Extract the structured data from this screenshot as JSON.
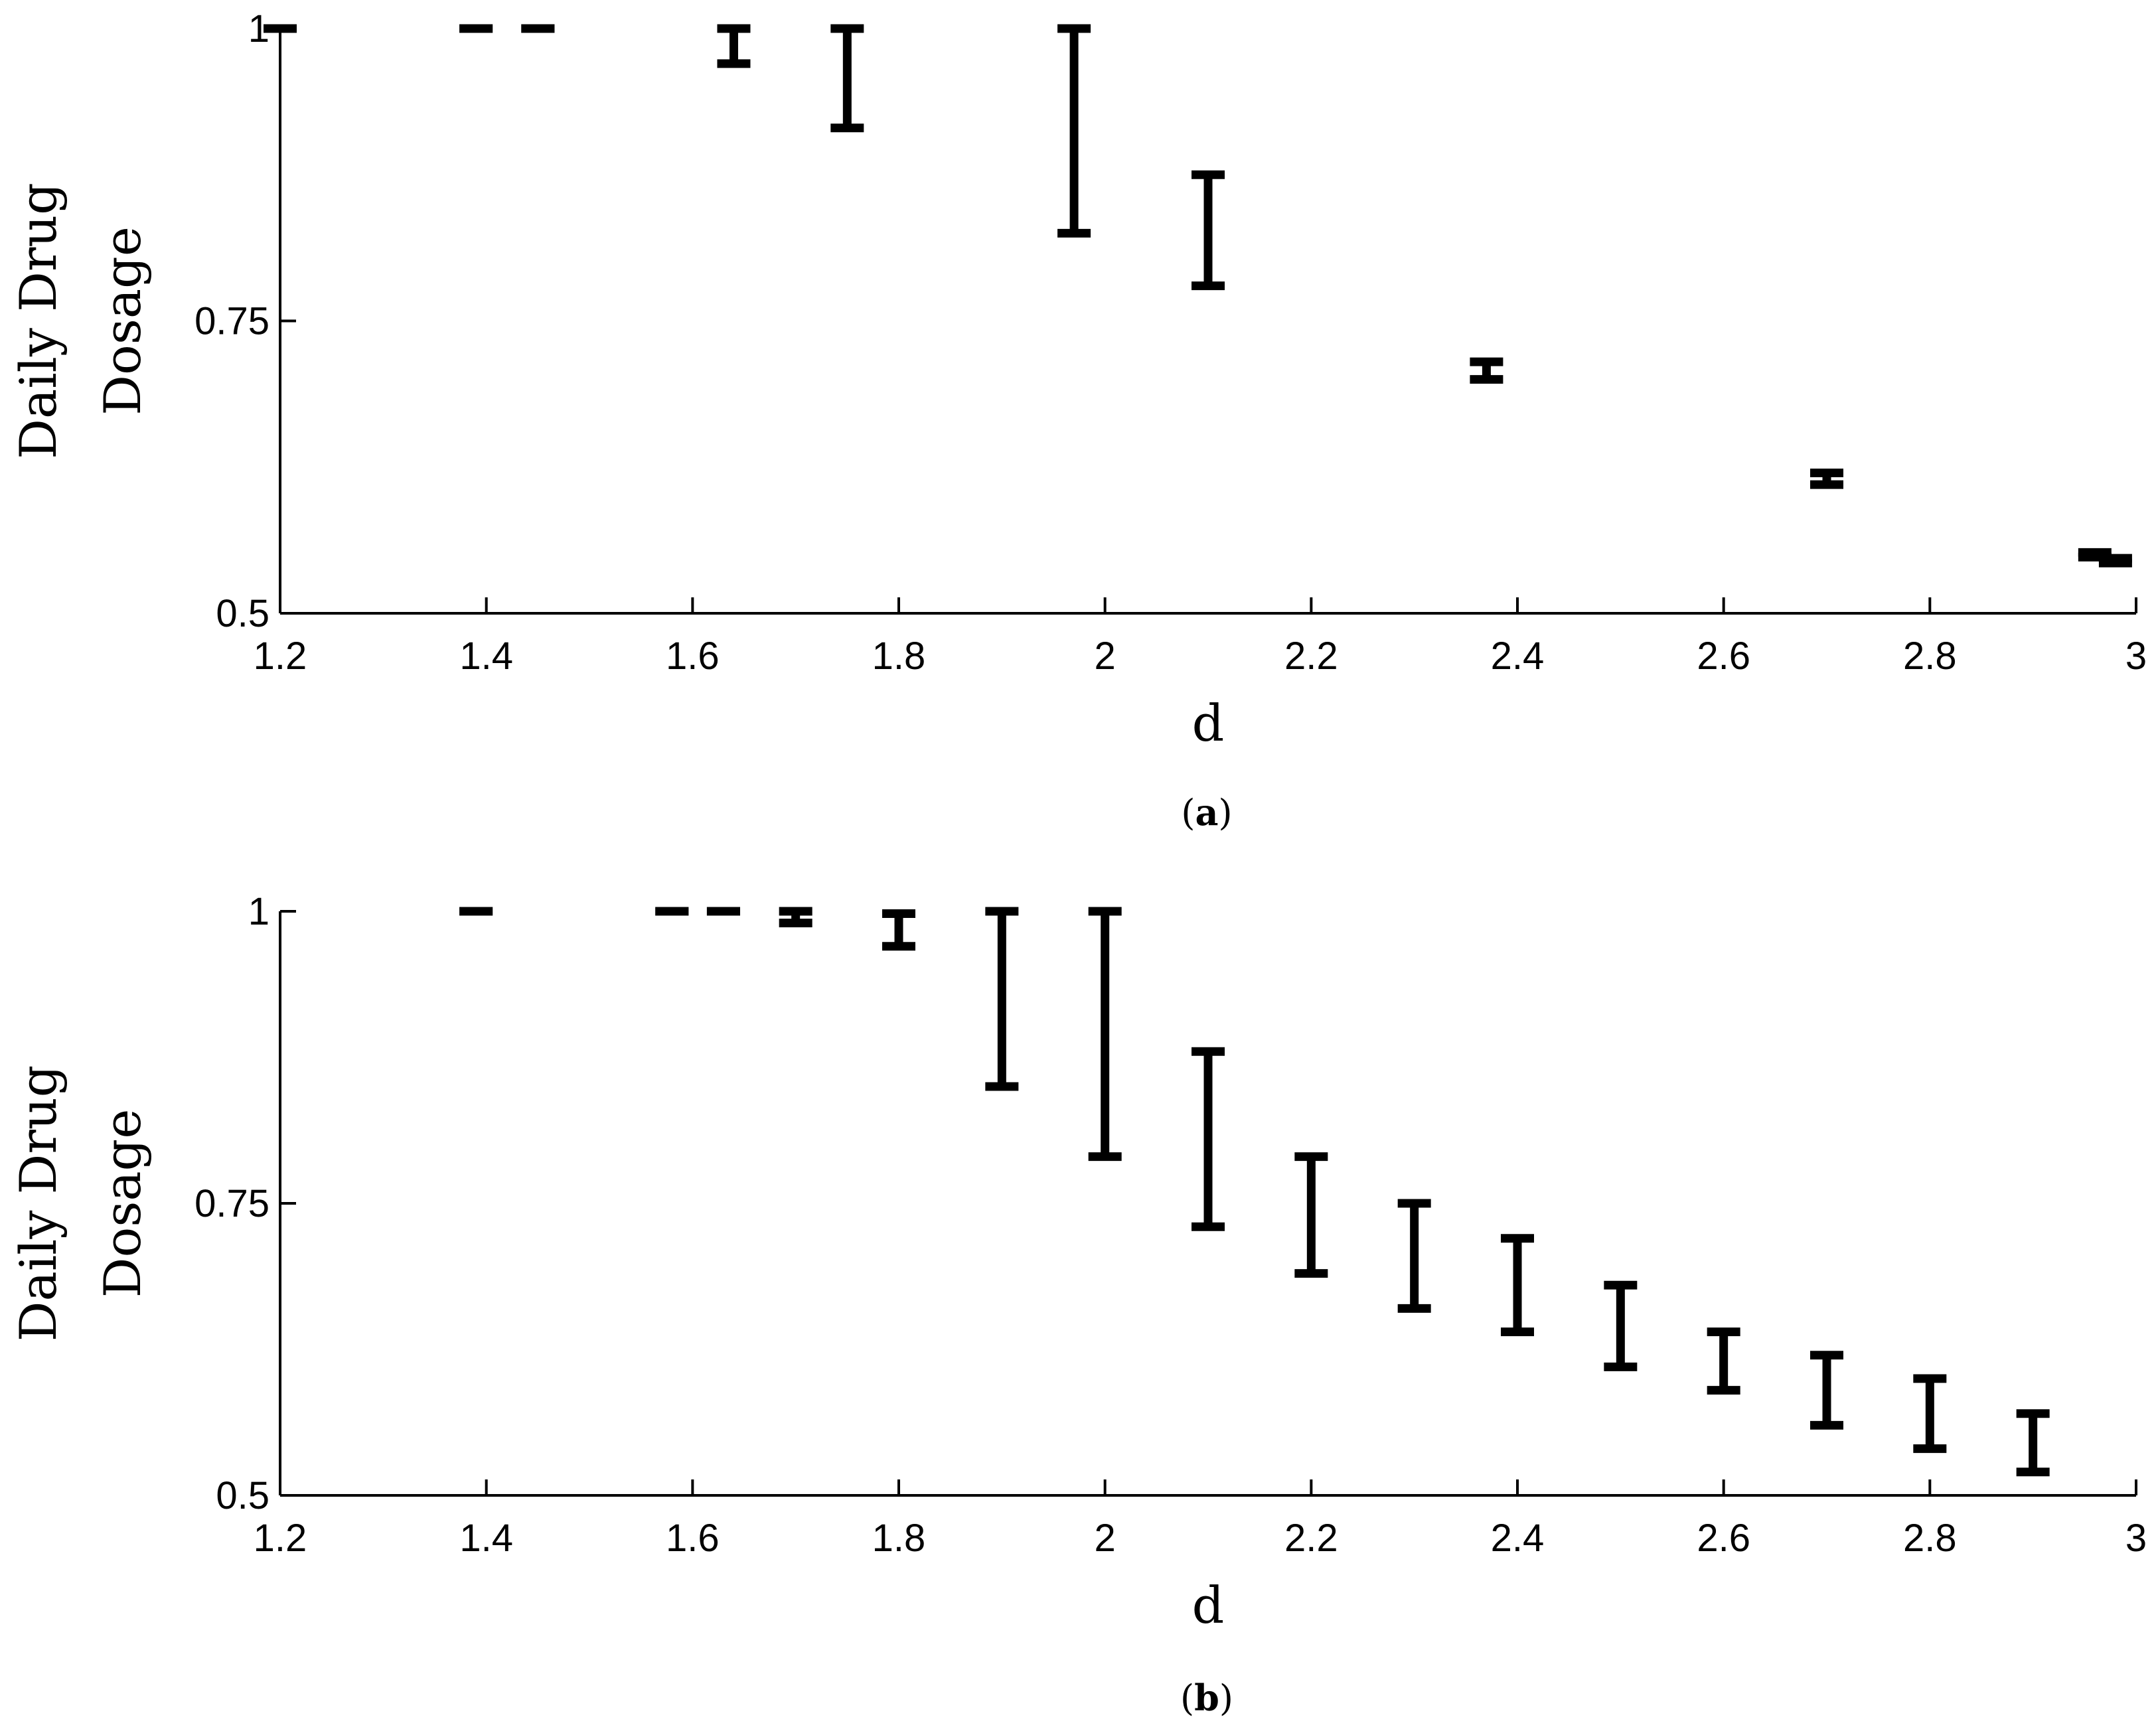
{
  "chart_data": [
    {
      "type": "errorbar",
      "caption_letter": "a",
      "xlabel": "d",
      "ylabel_line1": "Daily Drug",
      "ylabel_line2": "Dosage",
      "xlim": [
        1.2,
        3
      ],
      "ylim": [
        0.5,
        1
      ],
      "xticks": [
        1.2,
        1.4,
        1.6,
        1.8,
        2,
        2.2,
        2.4,
        2.6,
        2.8,
        3
      ],
      "xtick_labels": [
        "1.2",
        "1.4",
        "1.6",
        "1.8",
        "2",
        "2.2",
        "2.4",
        "2.6",
        "2.8",
        "3"
      ],
      "yticks": [
        0.5,
        0.75,
        1
      ],
      "ytick_labels": [
        "0.5",
        "0.75",
        "1"
      ],
      "points": [
        {
          "x": 1.2,
          "low": 1.0,
          "high": 1.0
        },
        {
          "x": 1.39,
          "low": 1.0,
          "high": 1.0
        },
        {
          "x": 1.45,
          "low": 1.0,
          "high": 1.0
        },
        {
          "x": 1.64,
          "low": 0.97,
          "high": 1.0
        },
        {
          "x": 1.75,
          "low": 0.915,
          "high": 1.0
        },
        {
          "x": 1.97,
          "low": 0.825,
          "high": 1.0
        },
        {
          "x": 2.1,
          "low": 0.78,
          "high": 0.875
        },
        {
          "x": 2.37,
          "low": 0.7,
          "high": 0.715
        },
        {
          "x": 2.7,
          "low": 0.61,
          "high": 0.62
        },
        {
          "x": 2.96,
          "low": 0.548,
          "high": 0.552
        },
        {
          "x": 2.98,
          "low": 0.543,
          "high": 0.547
        }
      ]
    },
    {
      "type": "errorbar",
      "caption_letter": "b",
      "xlabel": "d",
      "ylabel_line1": "Daily Drug",
      "ylabel_line2": "Dosage",
      "xlim": [
        1.2,
        3
      ],
      "ylim": [
        0.5,
        1
      ],
      "xticks": [
        1.2,
        1.4,
        1.6,
        1.8,
        2,
        2.2,
        2.4,
        2.6,
        2.8,
        3
      ],
      "xtick_labels": [
        "1.2",
        "1.4",
        "1.6",
        "1.8",
        "2",
        "2.2",
        "2.4",
        "2.6",
        "2.8",
        "3"
      ],
      "yticks": [
        0.5,
        0.75,
        1
      ],
      "ytick_labels": [
        "0.5",
        "0.75",
        "1"
      ],
      "points": [
        {
          "x": 1.39,
          "low": 1.0,
          "high": 1.0
        },
        {
          "x": 1.58,
          "low": 1.0,
          "high": 1.0
        },
        {
          "x": 1.63,
          "low": 1.0,
          "high": 1.0
        },
        {
          "x": 1.7,
          "low": 0.99,
          "high": 1.0
        },
        {
          "x": 1.8,
          "low": 0.97,
          "high": 0.998
        },
        {
          "x": 1.9,
          "low": 0.85,
          "high": 1.0
        },
        {
          "x": 2.0,
          "low": 0.79,
          "high": 1.0
        },
        {
          "x": 2.1,
          "low": 0.73,
          "high": 0.88
        },
        {
          "x": 2.2,
          "low": 0.69,
          "high": 0.79
        },
        {
          "x": 2.3,
          "low": 0.66,
          "high": 0.75
        },
        {
          "x": 2.4,
          "low": 0.64,
          "high": 0.72
        },
        {
          "x": 2.5,
          "low": 0.61,
          "high": 0.68
        },
        {
          "x": 2.6,
          "low": 0.59,
          "high": 0.64
        },
        {
          "x": 2.7,
          "low": 0.56,
          "high": 0.62
        },
        {
          "x": 2.8,
          "low": 0.54,
          "high": 0.6
        },
        {
          "x": 2.9,
          "low": 0.52,
          "high": 0.57
        }
      ]
    }
  ]
}
